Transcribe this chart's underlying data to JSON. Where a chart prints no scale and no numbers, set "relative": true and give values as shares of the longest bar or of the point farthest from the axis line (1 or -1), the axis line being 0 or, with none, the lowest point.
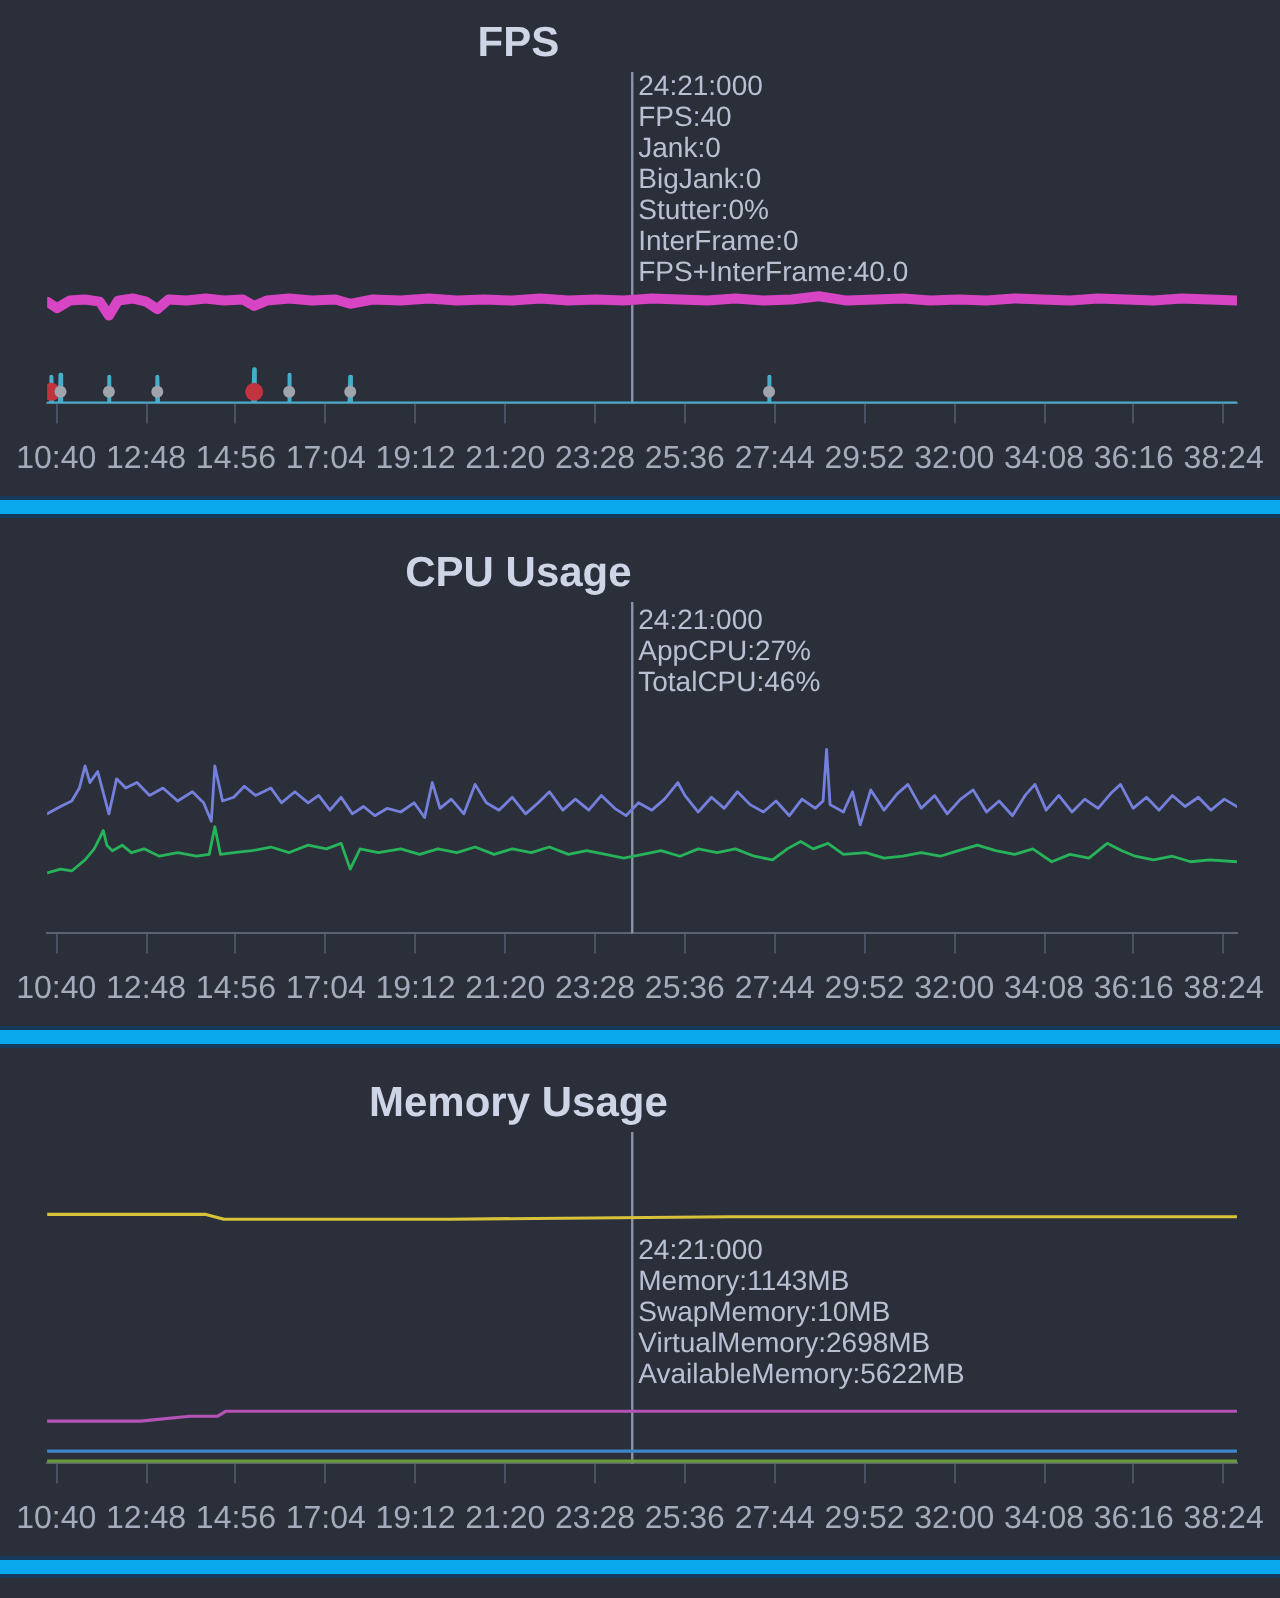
{
  "chart_data": [
    {
      "type": "line",
      "title": "FPS",
      "relative": true,
      "xlim": [
        627,
        2323
      ],
      "xticks": [
        {
          "value": 640,
          "label": "10:40"
        },
        {
          "value": 768,
          "label": "12:48"
        },
        {
          "value": 896,
          "label": "14:56"
        },
        {
          "value": 1024,
          "label": "17:04"
        },
        {
          "value": 1152,
          "label": "19:12"
        },
        {
          "value": 1280,
          "label": "21:20"
        },
        {
          "value": 1408,
          "label": "23:28"
        },
        {
          "value": 1536,
          "label": "25:36"
        },
        {
          "value": 1664,
          "label": "27:44"
        },
        {
          "value": 1792,
          "label": "29:52"
        },
        {
          "value": 1920,
          "label": "32:00"
        },
        {
          "value": 2048,
          "label": "34:08"
        },
        {
          "value": 2176,
          "label": "36:16"
        },
        {
          "value": 2304,
          "label": "38:24"
        }
      ],
      "series": [
        {
          "color": "#d845c4",
          "x": [
            627,
            641,
            659,
            681,
            702,
            715,
            728,
            749,
            768,
            784,
            800,
            826,
            853,
            879,
            906,
            922,
            940,
            972,
            1004,
            1038,
            1059,
            1091,
            1131,
            1171,
            1211,
            1250,
            1290,
            1330,
            1370,
            1409,
            1449,
            1489,
            1529,
            1568,
            1608,
            1648,
            1688,
            1727,
            1767,
            1807,
            1847,
            1886,
            1926,
            1966,
            2006,
            2045,
            2085,
            2125,
            2165,
            2204,
            2244,
            2284,
            2323
          ],
          "values": [
            0.95,
            0.89,
            0.96,
            0.97,
            0.95,
            0.82,
            0.96,
            0.98,
            0.95,
            0.88,
            0.97,
            0.96,
            0.98,
            0.96,
            0.97,
            0.91,
            0.96,
            0.98,
            0.96,
            0.97,
            0.93,
            0.97,
            0.96,
            0.98,
            0.96,
            0.97,
            0.96,
            0.98,
            0.96,
            0.97,
            0.96,
            0.98,
            0.97,
            0.96,
            0.98,
            0.96,
            0.97,
            1,
            0.96,
            0.97,
            0.98,
            0.96,
            0.97,
            0.96,
            0.98,
            0.97,
            0.96,
            0.98,
            0.97,
            0.96,
            0.98,
            0.97,
            0.96
          ]
        },
        {
          "color": "#45aecb",
          "x": [
            627,
            632,
            633,
            634,
            645,
            646,
            647,
            714,
            715,
            716,
            783,
            784,
            785,
            921,
            922,
            923,
            971,
            972,
            973,
            1058,
            1059,
            1060,
            1655,
            1656,
            1657,
            2323
          ],
          "values": [
            0,
            0,
            0.25,
            0,
            0,
            0.27,
            0,
            0,
            0.25,
            0,
            0,
            0.25,
            0,
            0,
            0.32,
            0,
            0,
            0.27,
            0,
            0,
            0.25,
            0,
            0,
            0.25,
            0,
            0
          ]
        },
        {
          "type": "scatter",
          "marker": "circle",
          "color": "#c0333f",
          "x": [
            633,
            922
          ],
          "values": [
            0.11,
            0.11
          ]
        },
        {
          "type": "scatter",
          "marker": "circle",
          "color": "#a0a4ad",
          "x": [
            646,
            715,
            784,
            972,
            1059,
            1656
          ],
          "values": [
            0.11,
            0.11,
            0.11,
            0.11,
            0.11,
            0.11
          ]
        }
      ],
      "ref_lines": [
        {
          "axis": "x",
          "value": 1461,
          "color": "#8b93a7"
        }
      ],
      "annotations": [
        "24:21:000",
        "FPS:40",
        "Jank:0",
        "BigJank:0",
        "Stutter:0%",
        "InterFrame:0",
        "FPS+InterFrame:40.0"
      ]
    },
    {
      "type": "line",
      "title": "CPU Usage",
      "relative": true,
      "xlim": [
        627,
        2323
      ],
      "xticks": [
        {
          "value": 640,
          "label": "10:40"
        },
        {
          "value": 768,
          "label": "12:48"
        },
        {
          "value": 896,
          "label": "14:56"
        },
        {
          "value": 1024,
          "label": "17:04"
        },
        {
          "value": 1152,
          "label": "19:12"
        },
        {
          "value": 1280,
          "label": "21:20"
        },
        {
          "value": 1408,
          "label": "23:28"
        },
        {
          "value": 1536,
          "label": "25:36"
        },
        {
          "value": 1664,
          "label": "27:44"
        },
        {
          "value": 1792,
          "label": "29:52"
        },
        {
          "value": 1920,
          "label": "32:00"
        },
        {
          "value": 2048,
          "label": "34:08"
        },
        {
          "value": 2176,
          "label": "36:16"
        },
        {
          "value": 2304,
          "label": "38:24"
        }
      ],
      "series": [
        {
          "color": "#7480dc",
          "x": [
            627,
            646,
            662,
            673,
            681,
            688,
            699,
            715,
            726,
            739,
            755,
            773,
            792,
            813,
            834,
            850,
            861,
            866,
            877,
            893,
            908,
            924,
            946,
            961,
            980,
            999,
            1014,
            1030,
            1046,
            1062,
            1078,
            1094,
            1112,
            1131,
            1150,
            1165,
            1176,
            1187,
            1203,
            1221,
            1237,
            1253,
            1271,
            1290,
            1309,
            1327,
            1343,
            1362,
            1380,
            1399,
            1417,
            1436,
            1452,
            1470,
            1489,
            1507,
            1526,
            1536,
            1555,
            1574,
            1592,
            1611,
            1629,
            1648,
            1666,
            1685,
            1703,
            1722,
            1733,
            1738,
            1743,
            1762,
            1775,
            1786,
            1801,
            1820,
            1839,
            1854,
            1873,
            1892,
            1910,
            1929,
            1947,
            1966,
            1984,
            2003,
            2021,
            2035,
            2051,
            2069,
            2088,
            2106,
            2125,
            2143,
            2157,
            2175,
            2194,
            2212,
            2231,
            2249,
            2268,
            2286,
            2305,
            2323
          ],
          "values": [
            0.65,
            0.69,
            0.72,
            0.79,
            0.91,
            0.82,
            0.88,
            0.65,
            0.84,
            0.79,
            0.82,
            0.75,
            0.79,
            0.72,
            0.77,
            0.71,
            0.61,
            0.91,
            0.72,
            0.74,
            0.8,
            0.75,
            0.79,
            0.71,
            0.77,
            0.71,
            0.75,
            0.67,
            0.74,
            0.65,
            0.69,
            0.64,
            0.68,
            0.66,
            0.71,
            0.63,
            0.82,
            0.68,
            0.73,
            0.65,
            0.81,
            0.71,
            0.67,
            0.74,
            0.65,
            0.71,
            0.77,
            0.67,
            0.73,
            0.67,
            0.75,
            0.68,
            0.64,
            0.71,
            0.67,
            0.73,
            0.82,
            0.75,
            0.66,
            0.74,
            0.68,
            0.77,
            0.7,
            0.66,
            0.72,
            0.64,
            0.73,
            0.68,
            0.72,
            1,
            0.7,
            0.66,
            0.77,
            0.59,
            0.78,
            0.67,
            0.76,
            0.81,
            0.68,
            0.75,
            0.65,
            0.73,
            0.78,
            0.66,
            0.72,
            0.64,
            0.75,
            0.81,
            0.67,
            0.75,
            0.66,
            0.73,
            0.68,
            0.76,
            0.81,
            0.68,
            0.74,
            0.67,
            0.75,
            0.69,
            0.74,
            0.67,
            0.73,
            0.69
          ]
        },
        {
          "color": "#27b35a",
          "x": [
            627,
            646,
            662,
            681,
            694,
            702,
            707,
            712,
            720,
            734,
            747,
            765,
            787,
            813,
            840,
            858,
            866,
            874,
            893,
            919,
            946,
            972,
            999,
            1025,
            1046,
            1059,
            1073,
            1099,
            1131,
            1158,
            1184,
            1211,
            1237,
            1264,
            1290,
            1317,
            1343,
            1370,
            1396,
            1423,
            1449,
            1476,
            1502,
            1529,
            1555,
            1582,
            1608,
            1635,
            1661,
            1682,
            1701,
            1719,
            1740,
            1762,
            1794,
            1820,
            1847,
            1873,
            1900,
            1926,
            1953,
            1979,
            2006,
            2032,
            2059,
            2085,
            2112,
            2138,
            2159,
            2178,
            2204,
            2231,
            2257,
            2284,
            2323
          ],
          "values": [
            0.33,
            0.35,
            0.34,
            0.4,
            0.46,
            0.52,
            0.56,
            0.48,
            0.45,
            0.48,
            0.44,
            0.46,
            0.42,
            0.44,
            0.42,
            0.43,
            0.58,
            0.43,
            0.44,
            0.45,
            0.47,
            0.44,
            0.48,
            0.46,
            0.49,
            0.35,
            0.46,
            0.44,
            0.46,
            0.43,
            0.46,
            0.44,
            0.47,
            0.43,
            0.46,
            0.44,
            0.47,
            0.43,
            0.45,
            0.43,
            0.41,
            0.43,
            0.45,
            0.42,
            0.46,
            0.44,
            0.46,
            0.42,
            0.4,
            0.46,
            0.5,
            0.46,
            0.49,
            0.43,
            0.44,
            0.41,
            0.42,
            0.44,
            0.42,
            0.45,
            0.48,
            0.45,
            0.43,
            0.46,
            0.39,
            0.43,
            0.41,
            0.49,
            0.45,
            0.42,
            0.4,
            0.42,
            0.39,
            0.4,
            0.39
          ]
        }
      ],
      "ref_lines": [
        {
          "axis": "x",
          "value": 1461,
          "color": "#8b93a7"
        }
      ],
      "annotations": [
        "24:21:000",
        "AppCPU:27%",
        "TotalCPU:46%"
      ]
    },
    {
      "type": "line",
      "title": "Memory Usage",
      "relative": true,
      "xlim": [
        627,
        2323
      ],
      "xticks": [
        {
          "value": 640,
          "label": "10:40"
        },
        {
          "value": 768,
          "label": "12:48"
        },
        {
          "value": 896,
          "label": "14:56"
        },
        {
          "value": 1024,
          "label": "17:04"
        },
        {
          "value": 1152,
          "label": "19:12"
        },
        {
          "value": 1280,
          "label": "21:20"
        },
        {
          "value": 1408,
          "label": "23:28"
        },
        {
          "value": 1536,
          "label": "25:36"
        },
        {
          "value": 1664,
          "label": "27:44"
        },
        {
          "value": 1792,
          "label": "29:52"
        },
        {
          "value": 1920,
          "label": "32:00"
        },
        {
          "value": 2048,
          "label": "34:08"
        },
        {
          "value": 2176,
          "label": "36:16"
        },
        {
          "value": 2304,
          "label": "38:24"
        }
      ],
      "series": [
        {
          "color": "#d8c23a",
          "x": [
            627,
            700,
            800,
            852,
            879,
            1200,
            1600,
            2000,
            2323
          ],
          "values": [
            1,
            1,
            1,
            1,
            0.98,
            0.98,
            0.99,
            0.99,
            0.99
          ]
        },
        {
          "color": "#b552b5",
          "x": [
            627,
            760,
            830,
            870,
            882,
            1300,
            1800,
            2323
          ],
          "values": [
            0.17,
            0.17,
            0.19,
            0.19,
            0.21,
            0.21,
            0.21,
            0.21
          ]
        },
        {
          "color": "#3f86c8",
          "x": [
            627,
            2323
          ],
          "values": [
            0.05,
            0.05
          ]
        },
        {
          "color": "#6a9a3a",
          "x": [
            627,
            2323
          ],
          "values": [
            0.01,
            0.01
          ]
        }
      ],
      "ref_lines": [
        {
          "axis": "x",
          "value": 1461,
          "color": "#8b93a7"
        }
      ],
      "annotations": [
        "24:21:000",
        "Memory:1143MB",
        "SwapMemory:10MB",
        "VirtualMemory:2698MB",
        "AvailableMemory:5622MB"
      ]
    }
  ]
}
